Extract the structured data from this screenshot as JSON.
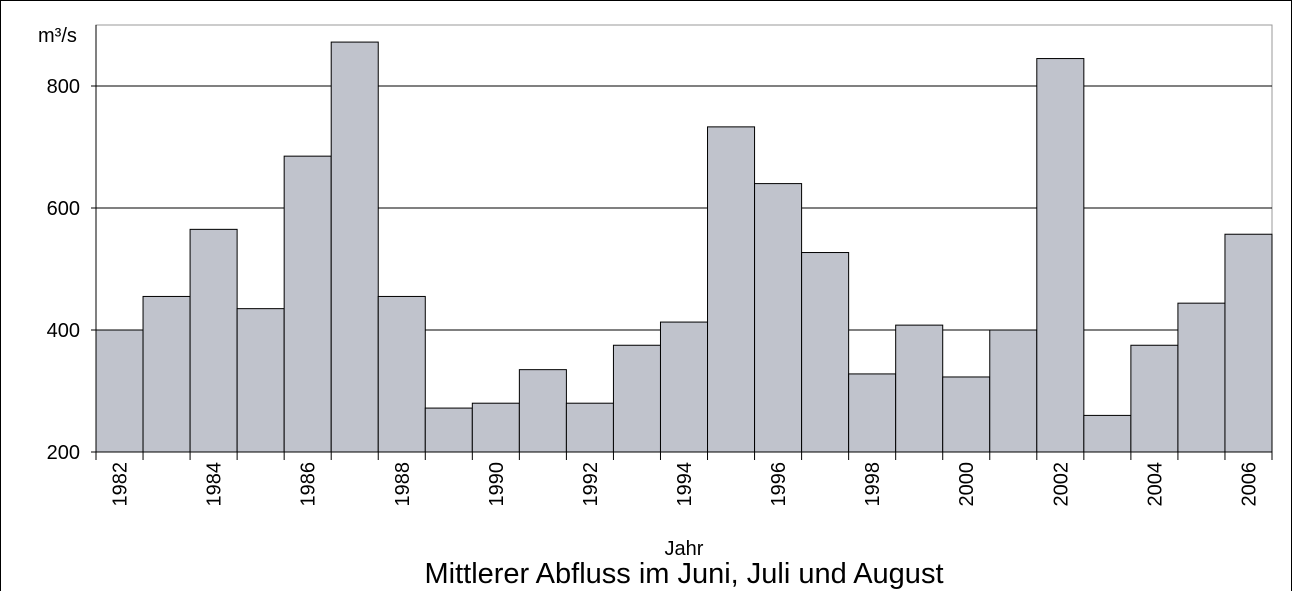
{
  "chart_data": {
    "type": "bar",
    "title": "Mittlerer Abfluss im Juni, Juli und August",
    "x_label": "Jahr",
    "y_label": "m³/s",
    "categories": [
      "1982",
      null,
      "1984",
      null,
      "1986",
      null,
      "1988",
      null,
      "1990",
      null,
      "1992",
      null,
      "1994",
      null,
      "1996",
      null,
      "1998",
      null,
      "2000",
      null,
      "2002",
      null,
      "2004",
      null,
      "2006"
    ],
    "values": [
      400,
      455,
      565,
      435,
      685,
      872,
      455,
      272,
      280,
      335,
      280,
      375,
      413,
      733,
      640,
      527,
      328,
      408,
      323,
      400,
      845,
      260,
      375,
      444,
      557
    ],
    "color": "#c0c3cc",
    "ylim": [
      200,
      900
    ],
    "yticks": [
      200,
      400,
      600,
      800
    ],
    "grid": true
  }
}
